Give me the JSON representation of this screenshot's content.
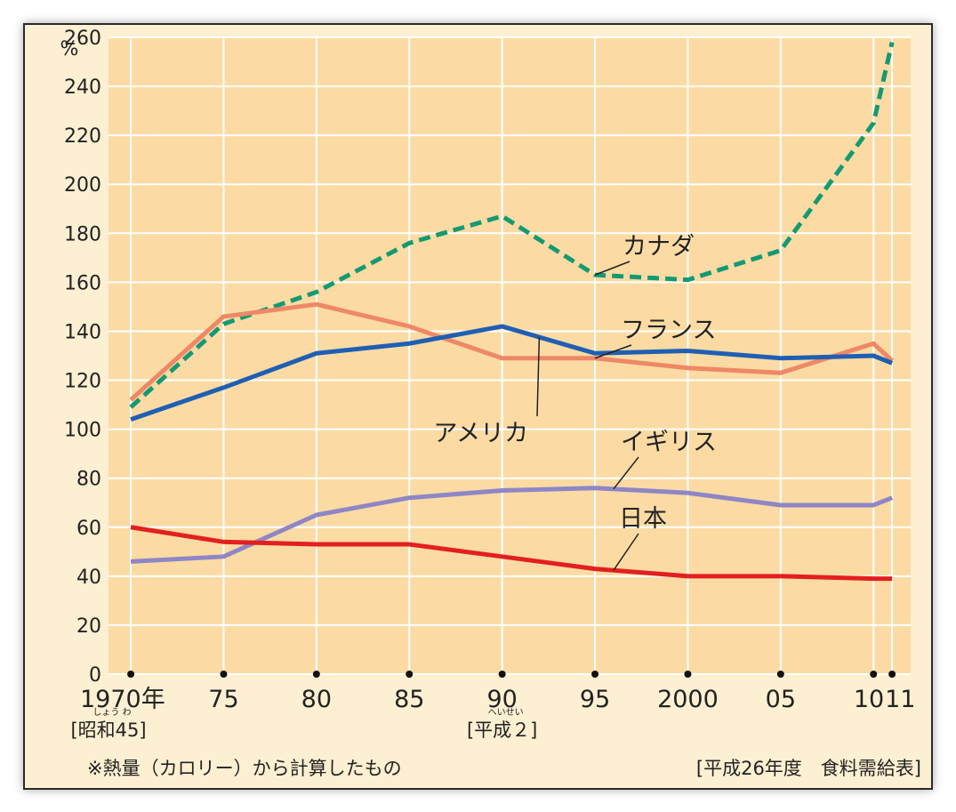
{
  "chart_data": {
    "type": "line",
    "ylabel": "%",
    "ylim": [
      0,
      260
    ],
    "yticks": [
      "0",
      "20",
      "40",
      "60",
      "80",
      "100",
      "120",
      "140",
      "160",
      "180",
      "200",
      "220",
      "240",
      "260"
    ],
    "x": [
      1970,
      1975,
      1980,
      1985,
      1990,
      1995,
      2000,
      2005,
      2010,
      2011
    ],
    "xtick_labels": [
      "1970年",
      "75",
      "80",
      "85",
      "90",
      "95",
      "2000",
      "05",
      "10",
      "11"
    ],
    "era_labels": [
      {
        "x": 1970,
        "text": "[昭和45]",
        "ruby": "しょう わ"
      },
      {
        "x": 1990,
        "text": "[平成２]",
        "ruby": "へいせい"
      }
    ],
    "grid": true,
    "series": [
      {
        "name": "カナダ",
        "color": "#149a72",
        "style": "dashed",
        "values": [
          109,
          143,
          156,
          176,
          187,
          163,
          161,
          173,
          225,
          258
        ]
      },
      {
        "name": "フランス",
        "color": "#ee8866",
        "style": "solid",
        "values": [
          112,
          146,
          151,
          142,
          129,
          129,
          125,
          123,
          135,
          128
        ]
      },
      {
        "name": "アメリカ",
        "color": "#1f5fb3",
        "style": "solid",
        "values": [
          104,
          117,
          131,
          135,
          142,
          131,
          132,
          129,
          130,
          127
        ]
      },
      {
        "name": "イギリス",
        "color": "#8e86c6",
        "style": "solid",
        "values": [
          46,
          48,
          65,
          72,
          75,
          76,
          74,
          69,
          69,
          72
        ]
      },
      {
        "name": "日本",
        "color": "#e31f1f",
        "style": "solid",
        "values": [
          60,
          54,
          53,
          53,
          48,
          43,
          40,
          40,
          39,
          39
        ]
      }
    ],
    "annotations": [
      {
        "text": "カナダ",
        "series": "カナダ",
        "anchor_x": 1995
      },
      {
        "text": "フランス",
        "series": "フランス",
        "anchor_x": 1995
      },
      {
        "text": "アメリカ",
        "series": "アメリカ",
        "anchor_x": 1992
      },
      {
        "text": "イギリス",
        "series": "イギリス",
        "anchor_x": 1996
      },
      {
        "text": "日本",
        "series": "日本",
        "anchor_x": 1996
      }
    ]
  },
  "footnote": "※熱量（カロリー）から計算したもの",
  "source": "[平成26年度　食料需給表]"
}
